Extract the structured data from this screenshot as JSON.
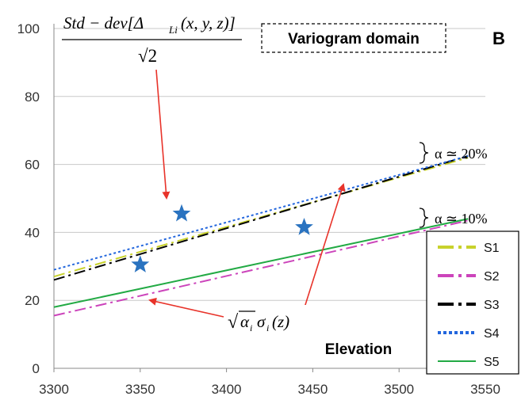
{
  "chart_data": {
    "type": "line",
    "title": "",
    "panel_label": "B",
    "xlabel": "",
    "ylabel": "",
    "xlim": [
      3300,
      3550
    ],
    "ylim": [
      0,
      100
    ],
    "x_ticks": [
      "3300",
      "3350",
      "3400",
      "3450",
      "3500",
      "3550"
    ],
    "y_ticks": [
      "0",
      "20",
      "40",
      "60",
      "80",
      "100"
    ],
    "grid": "horizontal",
    "legend_position": "bottom-right",
    "series": [
      {
        "name": "S1",
        "color": "#c8d22c",
        "style": "dash-dot",
        "x": [
          3300,
          3540
        ],
        "y": [
          27,
          62
        ]
      },
      {
        "name": "S2",
        "color": "#cc44bb",
        "style": "dash-dot",
        "x": [
          3300,
          3540
        ],
        "y": [
          15.5,
          43.5
        ]
      },
      {
        "name": "S3",
        "color": "#000000",
        "style": "dash-dot",
        "x": [
          3300,
          3540
        ],
        "y": [
          26,
          62.5
        ]
      },
      {
        "name": "S4",
        "color": "#2266dd",
        "style": "dotted",
        "x": [
          3300,
          3540
        ],
        "y": [
          29,
          62.5
        ]
      },
      {
        "name": "S5",
        "color": "#22aa44",
        "style": "solid",
        "x": [
          3300,
          3540
        ],
        "y": [
          18,
          44
        ]
      }
    ],
    "stars": [
      {
        "x": 3350,
        "y": 30.5
      },
      {
        "x": 3374,
        "y": 45.5
      },
      {
        "x": 3445,
        "y": 41.5
      }
    ],
    "annotations": {
      "domain_label": "Variogram domain",
      "elevation_label": "Elevation",
      "formula_top": {
        "numerator": "Std − dev[Δ",
        "subscript": "Li",
        "args": "(x, y, z)]",
        "denominator": "√2"
      },
      "formula_bottom": {
        "root": "√",
        "alpha": "α",
        "sub_i": "i",
        "sigma": "σ",
        "suffix": "(z)"
      },
      "bracket_20": "α ≃ 20%",
      "bracket_10": "α ≃ 10%"
    },
    "colors": {
      "arrow": "#e8332a",
      "star": "#2a73c0",
      "grid": "#c8c8c8",
      "axis": "#888888"
    }
  }
}
